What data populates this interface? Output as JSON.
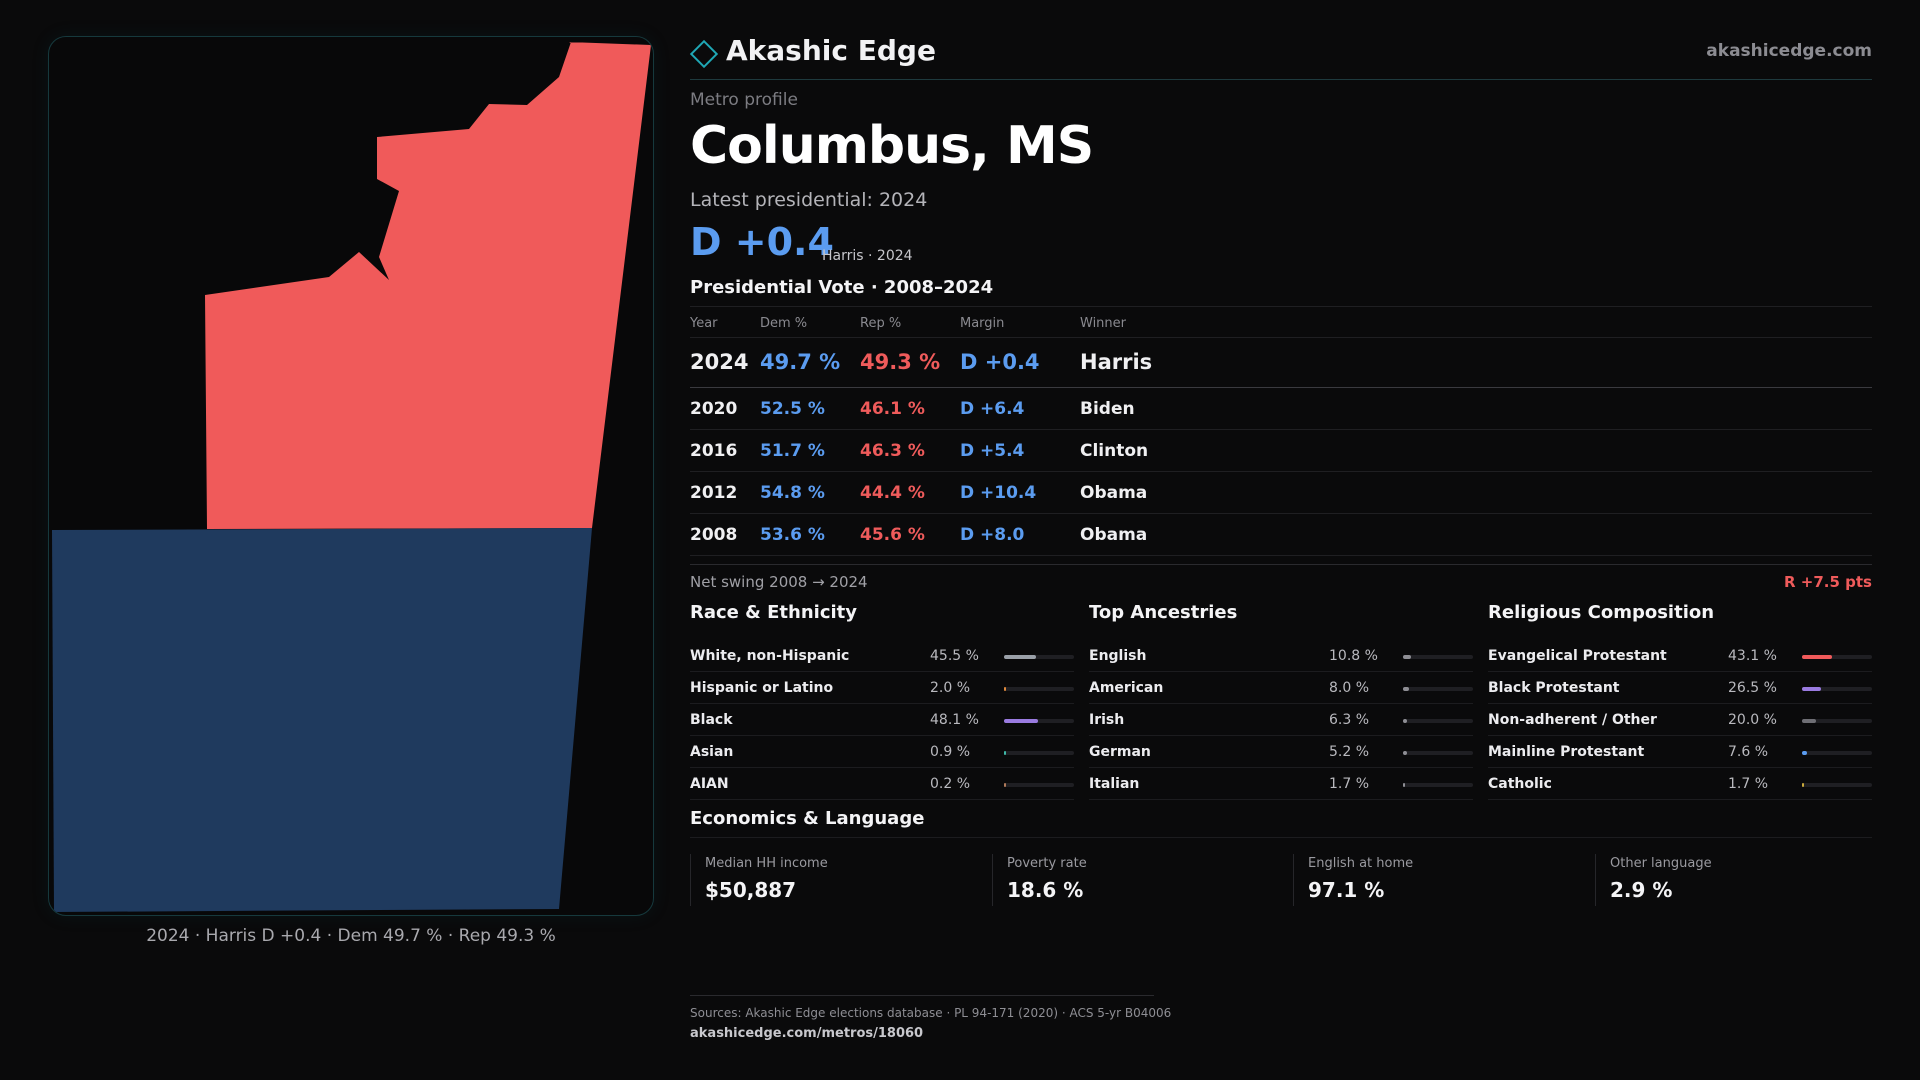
{
  "brand": {
    "name": "Akashic Edge",
    "url": "akashicedge.com",
    "accent": "#1fa7b5"
  },
  "profile": {
    "eyebrow": "Metro profile",
    "title": "Columbus, MS",
    "latest_label": "Latest presidential: 2024",
    "headline_margin": "D +0.4",
    "headline_sub": "Harris · 2024"
  },
  "map": {
    "caption": "2024 · Harris D +0.4 · Dem 49.7 % · Rep 49.3 %",
    "rep_color": "#f05a5a",
    "dem_color": "#1f3a5e"
  },
  "vote_table": {
    "title": "Presidential Vote · 2008–2024",
    "headers": {
      "year": "Year",
      "dem": "Dem %",
      "rep": "Rep %",
      "margin": "Margin",
      "winner": "Winner"
    },
    "rows": [
      {
        "year": "2024",
        "dem": "49.7 %",
        "rep": "49.3 %",
        "margin": "D +0.4",
        "winner": "Harris"
      },
      {
        "year": "2020",
        "dem": "52.5 %",
        "rep": "46.1 %",
        "margin": "D +6.4",
        "winner": "Biden"
      },
      {
        "year": "2016",
        "dem": "51.7 %",
        "rep": "46.3 %",
        "margin": "D +5.4",
        "winner": "Clinton"
      },
      {
        "year": "2012",
        "dem": "54.8 %",
        "rep": "44.4 %",
        "margin": "D +10.4",
        "winner": "Obama"
      },
      {
        "year": "2008",
        "dem": "53.6 %",
        "rep": "45.6 %",
        "margin": "D +8.0",
        "winner": "Obama"
      }
    ],
    "swing_label": "Net swing 2008 → 2024",
    "swing_value": "R +7.5 pts"
  },
  "race": {
    "title": "Race & Ethnicity",
    "rows": [
      {
        "label": "White, non-Hispanic",
        "value": "45.5 %",
        "pct": 45.5,
        "color": "#9aa0a8"
      },
      {
        "label": "Hispanic or Latino",
        "value": "2.0 %",
        "pct": 2.0,
        "color": "#e08a3c"
      },
      {
        "label": "Black",
        "value": "48.1 %",
        "pct": 48.1,
        "color": "#9a7be0"
      },
      {
        "label": "Asian",
        "value": "0.9 %",
        "pct": 0.9,
        "color": "#3fb8a8"
      },
      {
        "label": "AIAN",
        "value": "0.2 %",
        "pct": 0.2,
        "color": "#b07a5a"
      }
    ]
  },
  "ancestry": {
    "title": "Top Ancestries",
    "rows": [
      {
        "label": "English",
        "value": "10.8 %",
        "pct": 10.8,
        "color": "#8e8e94"
      },
      {
        "label": "American",
        "value": "8.0 %",
        "pct": 8.0,
        "color": "#8e8e94"
      },
      {
        "label": "Irish",
        "value": "6.3 %",
        "pct": 6.3,
        "color": "#8e8e94"
      },
      {
        "label": "German",
        "value": "5.2 %",
        "pct": 5.2,
        "color": "#8e8e94"
      },
      {
        "label": "Italian",
        "value": "1.7 %",
        "pct": 1.7,
        "color": "#8e8e94"
      }
    ]
  },
  "religion": {
    "title": "Religious Composition",
    "rows": [
      {
        "label": "Evangelical Protestant",
        "value": "43.1 %",
        "pct": 43.1,
        "color": "#f05a5a"
      },
      {
        "label": "Black Protestant",
        "value": "26.5 %",
        "pct": 26.5,
        "color": "#9a7be0"
      },
      {
        "label": "Non-adherent / Other",
        "value": "20.0 %",
        "pct": 20.0,
        "color": "#6e6e74"
      },
      {
        "label": "Mainline Protestant",
        "value": "7.6 %",
        "pct": 7.6,
        "color": "#5b9cf0"
      },
      {
        "label": "Catholic",
        "value": "1.7 %",
        "pct": 1.7,
        "color": "#c9a93c"
      }
    ]
  },
  "economics": {
    "title": "Economics & Language",
    "cells": [
      {
        "label": "Median HH income",
        "value": "$50,887"
      },
      {
        "label": "Poverty rate",
        "value": "18.6 %"
      },
      {
        "label": "English at home",
        "value": "97.1 %"
      },
      {
        "label": "Other language",
        "value": "2.9 %"
      }
    ]
  },
  "footer": {
    "sources": "Sources: Akashic Edge elections database · PL 94-171 (2020) · ACS 5-yr B04006",
    "url": "akashicedge.com/metros/18060"
  }
}
